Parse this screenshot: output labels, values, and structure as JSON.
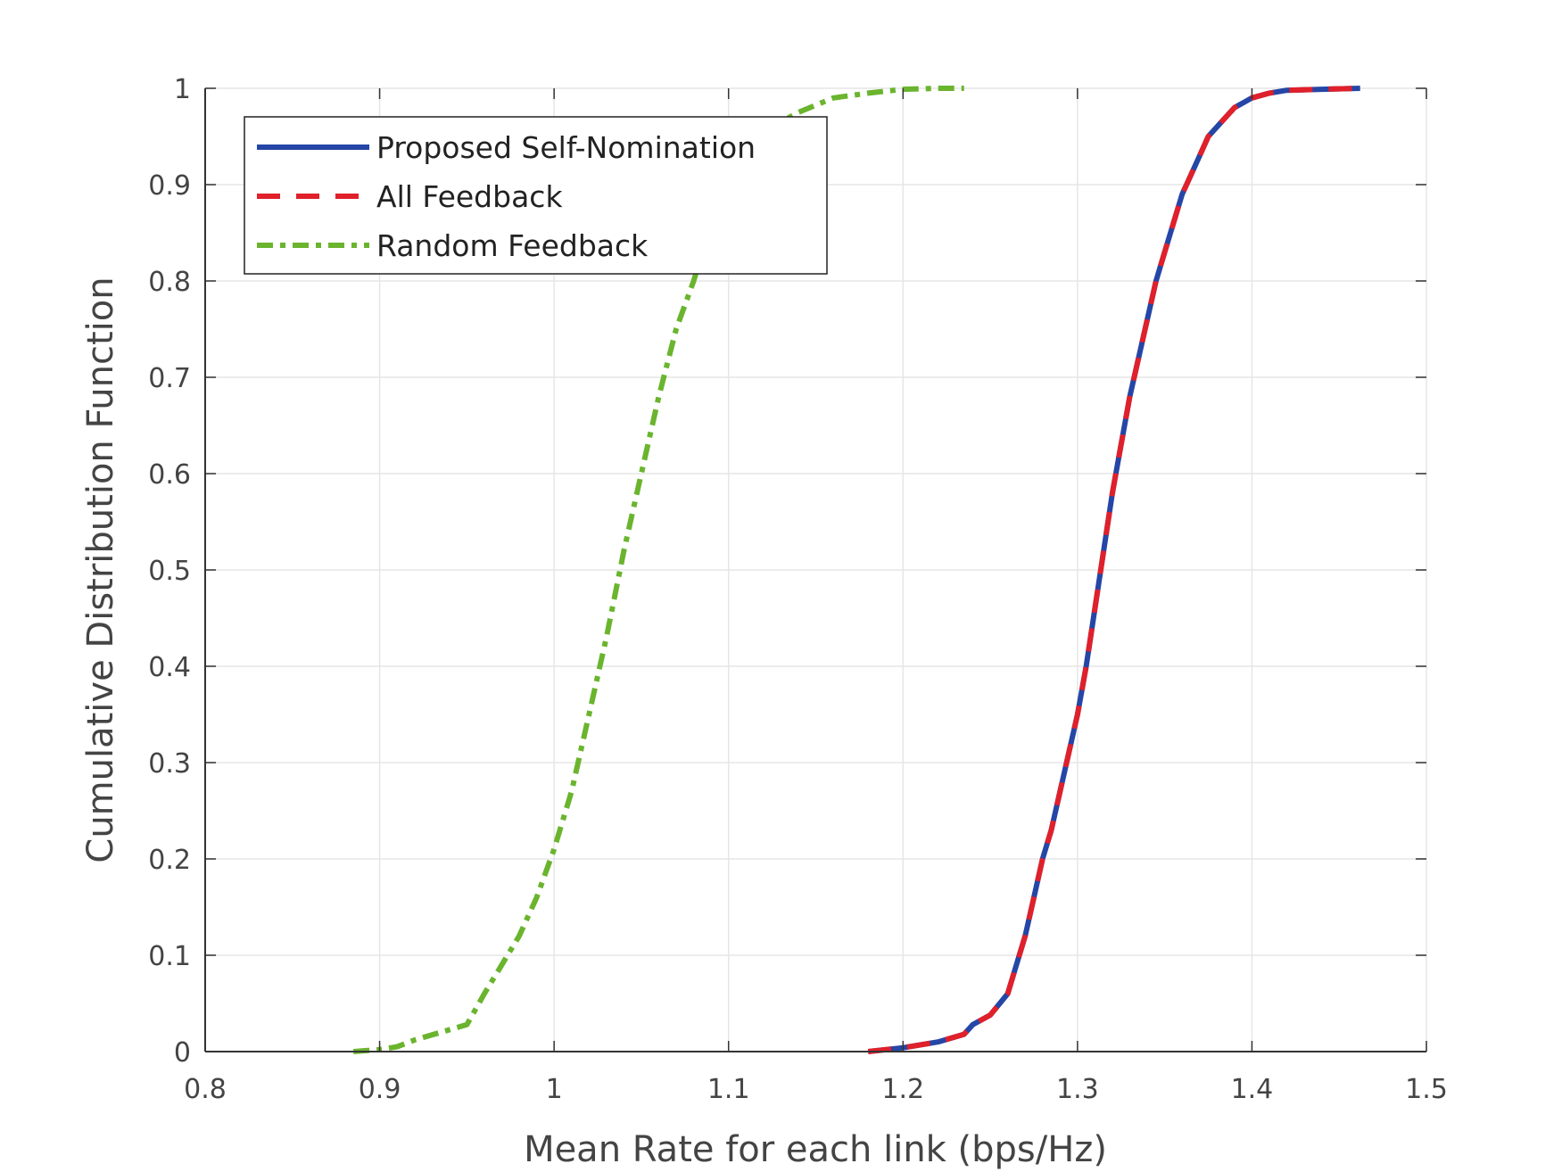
{
  "chart_data": {
    "type": "line",
    "xlabel": "Mean Rate for each link (bps/Hz)",
    "ylabel": "Cumulative Distribution Function",
    "xlim": [
      0.8,
      1.5
    ],
    "ylim": [
      0,
      1
    ],
    "xticks": [
      "0.8",
      "0.9",
      "1",
      "1.1",
      "1.2",
      "1.3",
      "1.4",
      "1.5"
    ],
    "yticks": [
      "0",
      "0.1",
      "0.2",
      "0.3",
      "0.4",
      "0.5",
      "0.6",
      "0.7",
      "0.8",
      "0.9",
      "1"
    ],
    "grid": true,
    "legend_position": "top-left",
    "series": [
      {
        "name": "Proposed Self-Nomination",
        "color": "#2546a6",
        "style": "solid",
        "x": [
          1.18,
          1.2,
          1.22,
          1.235,
          1.24,
          1.25,
          1.26,
          1.265,
          1.27,
          1.275,
          1.28,
          1.285,
          1.29,
          1.295,
          1.3,
          1.305,
          1.31,
          1.315,
          1.32,
          1.325,
          1.33,
          1.335,
          1.34,
          1.345,
          1.35,
          1.355,
          1.36,
          1.365,
          1.37,
          1.375,
          1.38,
          1.385,
          1.39,
          1.4,
          1.41,
          1.42,
          1.44,
          1.462
        ],
        "y": [
          0,
          0.004,
          0.01,
          0.018,
          0.028,
          0.038,
          0.06,
          0.09,
          0.12,
          0.16,
          0.2,
          0.23,
          0.27,
          0.31,
          0.35,
          0.4,
          0.46,
          0.52,
          0.58,
          0.63,
          0.68,
          0.72,
          0.76,
          0.8,
          0.83,
          0.86,
          0.89,
          0.91,
          0.93,
          0.95,
          0.96,
          0.97,
          0.98,
          0.99,
          0.995,
          0.998,
          0.999,
          1.0
        ]
      },
      {
        "name": "All Feedback",
        "color": "#e0202a",
        "style": "dashed",
        "x": [
          1.18,
          1.2,
          1.22,
          1.235,
          1.24,
          1.25,
          1.26,
          1.265,
          1.27,
          1.275,
          1.28,
          1.285,
          1.29,
          1.295,
          1.3,
          1.305,
          1.31,
          1.315,
          1.32,
          1.325,
          1.33,
          1.335,
          1.34,
          1.345,
          1.35,
          1.355,
          1.36,
          1.365,
          1.37,
          1.375,
          1.38,
          1.385,
          1.39,
          1.4,
          1.41,
          1.42,
          1.44,
          1.462
        ],
        "y": [
          0,
          0.004,
          0.01,
          0.018,
          0.028,
          0.038,
          0.06,
          0.09,
          0.12,
          0.16,
          0.2,
          0.23,
          0.27,
          0.31,
          0.35,
          0.4,
          0.46,
          0.52,
          0.58,
          0.63,
          0.68,
          0.72,
          0.76,
          0.8,
          0.83,
          0.86,
          0.89,
          0.91,
          0.93,
          0.95,
          0.96,
          0.97,
          0.98,
          0.99,
          0.995,
          0.998,
          0.999,
          1.0
        ]
      },
      {
        "name": "Random Feedback",
        "color": "#6ab42e",
        "style": "dashdot",
        "x": [
          0.885,
          0.9,
          0.91,
          0.92,
          0.935,
          0.95,
          0.96,
          0.97,
          0.98,
          0.99,
          1.0,
          1.01,
          1.02,
          1.03,
          1.04,
          1.05,
          1.06,
          1.07,
          1.08,
          1.085,
          1.09,
          1.1,
          1.11,
          1.12,
          1.13,
          1.14,
          1.16,
          1.18,
          1.2,
          1.22,
          1.235
        ],
        "y": [
          0,
          0.002,
          0.005,
          0.012,
          0.02,
          0.028,
          0.06,
          0.09,
          0.12,
          0.16,
          0.21,
          0.27,
          0.35,
          0.43,
          0.52,
          0.6,
          0.68,
          0.75,
          0.8,
          0.83,
          0.86,
          0.9,
          0.93,
          0.955,
          0.965,
          0.975,
          0.99,
          0.995,
          0.999,
          1.0,
          1.0
        ]
      }
    ]
  }
}
